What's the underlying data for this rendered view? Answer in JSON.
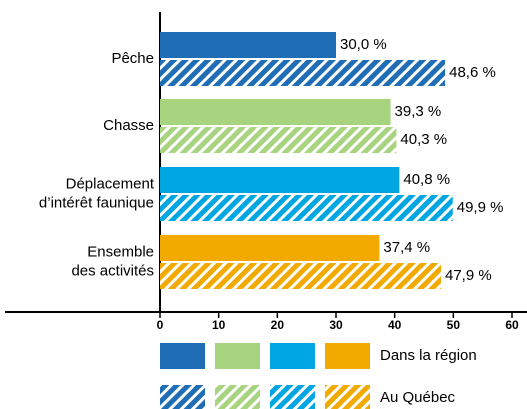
{
  "chart_data": {
    "type": "hbar",
    "categories": [
      [
        "Pêche"
      ],
      [
        "Chasse"
      ],
      [
        "Déplacement",
        "d’intérêt faunique"
      ],
      [
        "Ensemble",
        "des activités"
      ]
    ],
    "category_colors": [
      "#1f6db5",
      "#a8d37f",
      "#00a6e2",
      "#f2a900"
    ],
    "series": [
      {
        "name": "Dans la région",
        "pattern": "solid",
        "values": [
          30.0,
          39.3,
          40.8,
          37.4
        ],
        "value_labels": [
          "30,0 %",
          "39,3 %",
          "40,8 %",
          "37,4 %"
        ]
      },
      {
        "name": "Au Québec",
        "pattern": "hatched",
        "values": [
          48.6,
          40.3,
          49.9,
          47.9
        ],
        "value_labels": [
          "48,6 %",
          "40,3 %",
          "49,9 %",
          "47,9 %"
        ]
      }
    ],
    "xlim": [
      0,
      60
    ],
    "xticks": [
      0,
      10,
      20,
      30,
      40,
      50,
      60
    ]
  }
}
